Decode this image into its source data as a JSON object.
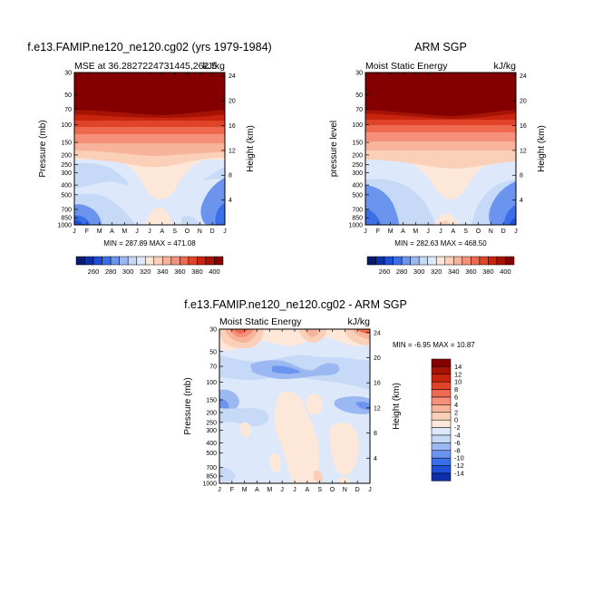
{
  "chart_data": [
    {
      "type": "heatmap",
      "title": "f.e13.FAMIP.ne120_ne120.cg02 (yrs 1979-1984)",
      "subtitle_left": "MSE at 36.2827224731445,262.5",
      "subtitle_right": "kJ/kg",
      "ylabel": "Pressure (mb)",
      "ylabel_right": "Height (km)",
      "x_ticks": [
        "J",
        "F",
        "M",
        "A",
        "M",
        "J",
        "J",
        "A",
        "S",
        "O",
        "N",
        "D",
        "J"
      ],
      "y_ticks": [
        "30",
        "50",
        "70",
        "100",
        "150",
        "200",
        "250",
        "300",
        "400",
        "500",
        "700",
        "850",
        "1000"
      ],
      "y_ticks_right": [
        "24",
        "20",
        "16",
        "12",
        "8",
        "4"
      ],
      "min_max_label": "MIN = 287.89  MAX = 471.08",
      "colorbar_labels": [
        "260",
        "280",
        "300",
        "320",
        "340",
        "360",
        "380",
        "400"
      ]
    },
    {
      "type": "heatmap",
      "title": "ARM SGP",
      "subtitle_left": "Moist Static Energy",
      "subtitle_right": "kJ/kg",
      "ylabel": "pressure  level",
      "ylabel_right": "Height (km)",
      "x_ticks": [
        "J",
        "F",
        "M",
        "A",
        "M",
        "J",
        "J",
        "A",
        "S",
        "O",
        "N",
        "D",
        "J"
      ],
      "y_ticks": [
        "30",
        "50",
        "70",
        "100",
        "150",
        "200",
        "250",
        "300",
        "400",
        "500",
        "700",
        "850",
        "1000"
      ],
      "y_ticks_right": [
        "24",
        "20",
        "16",
        "12",
        "8",
        "4"
      ],
      "min_max_label": "MIN = 282.63  MAX = 468.50",
      "colorbar_labels": [
        "260",
        "280",
        "300",
        "320",
        "340",
        "360",
        "380",
        "400"
      ]
    },
    {
      "type": "heatmap",
      "title": "f.e13.FAMIP.ne120_ne120.cg02 - ARM SGP",
      "subtitle_left": "Moist Static Energy",
      "subtitle_right": "kJ/kg",
      "ylabel": "Pressure (mb)",
      "ylabel_right": "Height (km)",
      "x_ticks": [
        "J",
        "F",
        "M",
        "A",
        "M",
        "J",
        "J",
        "A",
        "S",
        "O",
        "N",
        "D",
        "J"
      ],
      "y_ticks": [
        "30",
        "50",
        "70",
        "100",
        "150",
        "200",
        "250",
        "300",
        "400",
        "500",
        "700",
        "850",
        "1000"
      ],
      "y_ticks_right": [
        "24",
        "20",
        "16",
        "12",
        "8",
        "4"
      ],
      "min_max_label": "MIN =  -6.95  MAX =  10.87",
      "colorbar_labels": [
        "14",
        "12",
        "10",
        "8",
        "6",
        "4",
        "2",
        "0",
        "-2",
        "-4",
        "-6",
        "-8",
        "-10",
        "-12",
        "-14"
      ]
    }
  ],
  "colors": {
    "abs_scale": [
      "#0a1a6e",
      "#0d2fa8",
      "#1f4fd9",
      "#3b6fe8",
      "#6b94ee",
      "#9cb8f2",
      "#c6d9f6",
      "#dde9fa",
      "#fde7d8",
      "#fbd0b9",
      "#f8b49a",
      "#f5917a",
      "#ee6a4f",
      "#e04428",
      "#c8240e",
      "#a51305",
      "#840000"
    ],
    "diff_scale": [
      "#840000",
      "#a51305",
      "#c8240e",
      "#e04428",
      "#ee6a4f",
      "#f5917a",
      "#f8b49a",
      "#fbd0b9",
      "#fde7d8",
      "#dde9fa",
      "#c6d9f6",
      "#9cb8f2",
      "#6b94ee",
      "#3b6fe8",
      "#1f4fd9",
      "#0d2fa8"
    ]
  }
}
